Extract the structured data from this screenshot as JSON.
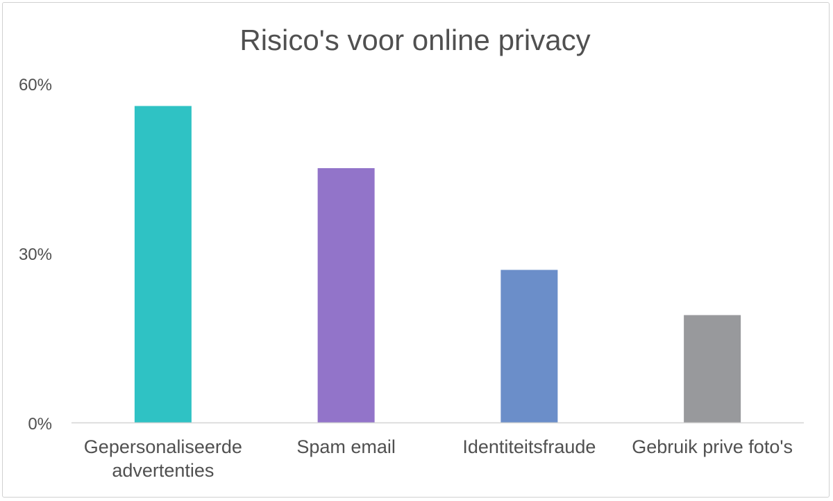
{
  "chart_data": {
    "type": "bar",
    "title": "Risico's voor online privacy",
    "xlabel": "",
    "ylabel": "",
    "categories": [
      [
        "Gepersonaliseerde",
        "advertenties"
      ],
      [
        "Spam email"
      ],
      [
        "Identiteitsfraude"
      ],
      [
        "Gebruik prive foto's"
      ]
    ],
    "values": [
      56,
      45,
      27,
      19
    ],
    "colors": [
      "#2fc2c4",
      "#9274c9",
      "#6b8ec9",
      "#98999c"
    ],
    "ylim": [
      0,
      60
    ],
    "yticks": [
      0,
      30,
      60
    ],
    "ytick_labels": [
      "0%",
      "30%",
      "60%"
    ],
    "unit": "%",
    "grid": false,
    "legend": "none"
  }
}
